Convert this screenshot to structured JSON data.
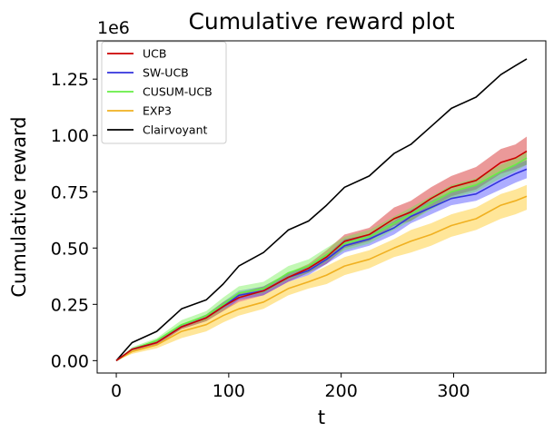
{
  "chart_data": {
    "type": "line",
    "title": "Cumulative reward plot",
    "xlabel": "t",
    "ylabel": "Cumulative reward",
    "y_offset_label": "1e6",
    "xlim": [
      -17,
      382
    ],
    "ylim": [
      -0.055,
      1.42
    ],
    "xticks": [
      0,
      100,
      200,
      300
    ],
    "xtick_labels": [
      "0",
      "100",
      "200",
      "300"
    ],
    "yticks": [
      0.0,
      0.25,
      0.5,
      0.75,
      1.0,
      1.25
    ],
    "ytick_labels": [
      "0.00",
      "0.25",
      "0.50",
      "0.75",
      "1.00",
      "1.25"
    ],
    "grid": false,
    "legend_position": "upper-left",
    "x": [
      0,
      14,
      36,
      58,
      80,
      95,
      109,
      131,
      153,
      171,
      187,
      203,
      225,
      247,
      262,
      280,
      298,
      320,
      342,
      355,
      365
    ],
    "series": [
      {
        "name": "UCB",
        "color": "#cc0000",
        "band_color": "#cc0000",
        "values": [
          0.0,
          0.05,
          0.08,
          0.15,
          0.19,
          0.24,
          0.28,
          0.31,
          0.37,
          0.41,
          0.46,
          0.53,
          0.56,
          0.63,
          0.66,
          0.72,
          0.77,
          0.8,
          0.88,
          0.9,
          0.93
        ],
        "band_upper": [
          0.0,
          0.055,
          0.09,
          0.16,
          0.205,
          0.26,
          0.3,
          0.33,
          0.39,
          0.43,
          0.49,
          0.56,
          0.59,
          0.68,
          0.71,
          0.77,
          0.82,
          0.86,
          0.94,
          0.96,
          0.995
        ],
        "band_lower": [
          0.0,
          0.045,
          0.07,
          0.14,
          0.175,
          0.22,
          0.26,
          0.29,
          0.35,
          0.39,
          0.43,
          0.5,
          0.53,
          0.6,
          0.62,
          0.68,
          0.73,
          0.76,
          0.83,
          0.85,
          0.87
        ]
      },
      {
        "name": "SW-UCB",
        "color": "#3333dd",
        "band_color": "#3333ff",
        "values": [
          0.0,
          0.05,
          0.08,
          0.15,
          0.19,
          0.24,
          0.29,
          0.31,
          0.37,
          0.4,
          0.45,
          0.51,
          0.54,
          0.59,
          0.64,
          0.68,
          0.72,
          0.74,
          0.8,
          0.83,
          0.85
        ],
        "band_upper": [
          0.0,
          0.055,
          0.09,
          0.16,
          0.205,
          0.26,
          0.31,
          0.33,
          0.39,
          0.42,
          0.47,
          0.54,
          0.56,
          0.62,
          0.67,
          0.71,
          0.75,
          0.78,
          0.84,
          0.87,
          0.89
        ],
        "band_lower": [
          0.0,
          0.045,
          0.07,
          0.14,
          0.175,
          0.22,
          0.27,
          0.29,
          0.35,
          0.38,
          0.43,
          0.48,
          0.51,
          0.56,
          0.61,
          0.65,
          0.69,
          0.71,
          0.76,
          0.79,
          0.81
        ]
      },
      {
        "name": "CUSUM-UCB",
        "color": "#66ee44",
        "band_color": "#66ee44",
        "values": [
          0.0,
          0.05,
          0.09,
          0.16,
          0.2,
          0.25,
          0.3,
          0.32,
          0.39,
          0.42,
          0.47,
          0.52,
          0.55,
          0.61,
          0.65,
          0.7,
          0.75,
          0.78,
          0.84,
          0.87,
          0.9
        ],
        "band_upper": [
          0.0,
          0.06,
          0.1,
          0.18,
          0.22,
          0.28,
          0.33,
          0.35,
          0.42,
          0.45,
          0.5,
          0.55,
          0.58,
          0.64,
          0.68,
          0.73,
          0.78,
          0.81,
          0.87,
          0.9,
          0.93
        ],
        "band_lower": [
          0.0,
          0.045,
          0.08,
          0.15,
          0.18,
          0.23,
          0.28,
          0.3,
          0.36,
          0.39,
          0.44,
          0.49,
          0.52,
          0.58,
          0.62,
          0.67,
          0.72,
          0.75,
          0.81,
          0.84,
          0.87
        ]
      },
      {
        "name": "EXP3",
        "color": "#f0b020",
        "band_color": "#ffc000",
        "values": [
          0.0,
          0.04,
          0.07,
          0.13,
          0.16,
          0.2,
          0.23,
          0.26,
          0.32,
          0.35,
          0.38,
          0.42,
          0.45,
          0.5,
          0.53,
          0.56,
          0.6,
          0.63,
          0.69,
          0.71,
          0.73
        ],
        "band_upper": [
          0.0,
          0.05,
          0.085,
          0.15,
          0.19,
          0.23,
          0.26,
          0.29,
          0.35,
          0.38,
          0.42,
          0.46,
          0.49,
          0.54,
          0.58,
          0.61,
          0.65,
          0.68,
          0.74,
          0.76,
          0.78
        ],
        "band_lower": [
          0.0,
          0.03,
          0.055,
          0.1,
          0.13,
          0.17,
          0.2,
          0.23,
          0.29,
          0.32,
          0.34,
          0.38,
          0.41,
          0.46,
          0.48,
          0.51,
          0.55,
          0.58,
          0.63,
          0.65,
          0.67
        ]
      },
      {
        "name": "Clairvoyant",
        "color": "#000000",
        "values": [
          0.0,
          0.08,
          0.13,
          0.23,
          0.27,
          0.34,
          0.42,
          0.48,
          0.58,
          0.62,
          0.69,
          0.77,
          0.82,
          0.92,
          0.96,
          1.04,
          1.12,
          1.17,
          1.27,
          1.31,
          1.34
        ]
      }
    ]
  }
}
